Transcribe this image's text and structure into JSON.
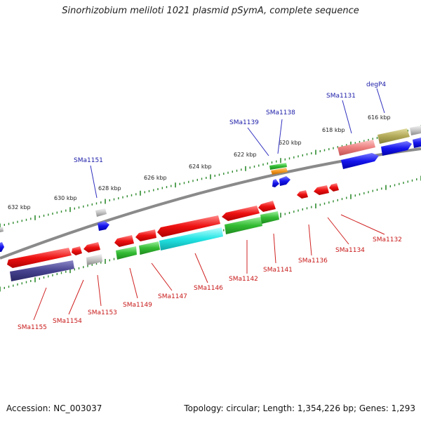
{
  "title": "Sinorhizobium meliloti 1021 plasmid pSymA, complete sequence",
  "footer": {
    "accession": "Accession: NC_003037",
    "summary": "Topology: circular; Length: 1,354,226 bp; Genes: 1,293"
  },
  "colors": {
    "backbone": "#8a8a8a",
    "tick": "#2e8b2e",
    "label_top": "#1a1aa8",
    "label_bottom": "#c81818",
    "leader_top": "#3030c0",
    "leader_bottom": "#d02020"
  },
  "scale_labels": [
    "632 kbp",
    "630 kbp",
    "628 kbp",
    "626 kbp",
    "624 kbp",
    "622 kbp",
    "620 kbp",
    "618 kbp",
    "616 kbp"
  ],
  "top_gene_labels": [
    "SMa1151",
    "SMa1139",
    "SMa1138",
    "SMa1131",
    "degP4"
  ],
  "bottom_gene_labels": [
    "SMa1155",
    "SMa1154",
    "SMa1153",
    "SMa1149",
    "SMa1147",
    "SMa1146",
    "SMa1142",
    "SMa1141",
    "SMa1136",
    "SMa1134",
    "SMa1132"
  ]
}
